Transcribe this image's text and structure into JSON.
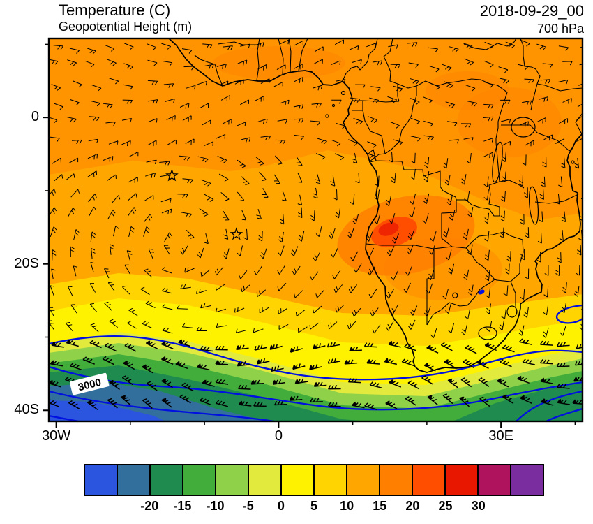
{
  "header": {
    "title_line1": "Temperature (C)",
    "title_line2": "Geopotential Height (m)",
    "datetime": "2018-09-29_00",
    "level": "700 hPa"
  },
  "axes": {
    "lon_min": -31,
    "lon_max": 41,
    "lat_min": -41.5,
    "lat_max": 10.8,
    "x_major_ticks": [
      {
        "lon": -30,
        "label": "30W"
      },
      {
        "lon": 0,
        "label": "0"
      },
      {
        "lon": 30,
        "label": "30E"
      }
    ],
    "x_minor_ticks": [
      -20,
      -10,
      10,
      20,
      40
    ],
    "y_major_ticks": [
      {
        "lat": 0,
        "label": "0"
      },
      {
        "lat": -20,
        "label": "20S"
      },
      {
        "lat": -40,
        "label": "40S"
      }
    ],
    "y_minor_ticks": [
      10,
      -10,
      -30
    ]
  },
  "map_overlays": {
    "height_contour_label": {
      "text": "3000",
      "lon": -25.5,
      "lat": -36.5,
      "rotation_deg": -14
    },
    "contour_color": "#0010e0",
    "coast_color": "#000000",
    "barb_color": "#000000",
    "station_markers": [
      {
        "type": "star",
        "name": "ascension-island",
        "lon": -14.4,
        "lat": -7.95
      },
      {
        "type": "star",
        "name": "st-helena",
        "lon": -5.7,
        "lat": -15.95
      },
      {
        "type": "circle",
        "name": "station-circle",
        "lon": 23.8,
        "lat": -24.3
      }
    ]
  },
  "colorbar": {
    "cells": [
      "#2B54DF",
      "#336F9D",
      "#1F8B4E",
      "#42AD3A",
      "#8FD24A",
      "#E2EA3E",
      "#FFF200",
      "#FFD400",
      "#FFA600",
      "#FF7F00",
      "#FF4E00",
      "#E81800",
      "#B0135E",
      "#7A2D9E"
    ],
    "labels": [
      "-20",
      "-15",
      "-10",
      "-5",
      "0",
      "5",
      "10",
      "15",
      "20",
      "25",
      "30"
    ],
    "first_labeled_boundary": 2
  },
  "chart_data": {
    "type": "heatmap",
    "title": "Temperature (C)",
    "overlay_title": "Geopotential Height (m)",
    "valid_time": "2018-09-29_00",
    "pressure_level": "700 hPa",
    "x_axis": {
      "label": "longitude",
      "tick_labels": [
        "30W",
        "0",
        "30E"
      ],
      "range_deg": [
        -31,
        41
      ]
    },
    "y_axis": {
      "label": "latitude",
      "tick_labels": [
        "0",
        "20S",
        "40S"
      ],
      "range_deg": [
        -41.5,
        10.8
      ]
    },
    "colorbar_tick_values_c": [
      -20,
      -15,
      -10,
      -5,
      0,
      5,
      10,
      15,
      20,
      25,
      30
    ],
    "palette": [
      "#2B54DF",
      "#336F9D",
      "#1F8B4E",
      "#42AD3A",
      "#8FD24A",
      "#E2EA3E",
      "#FFF200",
      "#FFD400",
      "#FFA600",
      "#FF7F00",
      "#FF4E00",
      "#E81800",
      "#B0135E",
      "#7A2D9E"
    ],
    "field_summary": [
      {
        "region": "tropics and subtropics (10N to ~25S), ocean and land",
        "temperature_c": "10-15"
      },
      {
        "region": "Sahel, Congo basin and East Africa patches",
        "temperature_c": "15-20"
      },
      {
        "region": "warm core over Angola / Zambia (~14-18E, 13-17S)",
        "temperature_c": "20-25"
      },
      {
        "region": "zonal band ~27S-33S",
        "temperature_c": "5-10"
      },
      {
        "region": "zonal band ~33S-37S",
        "temperature_c": "-5-5"
      },
      {
        "region": "southwest corner near 40S",
        "temperature_c": "-15 to -5"
      }
    ],
    "geopotential_contours_m": [
      3000
    ],
    "height_pattern": "blue geopotential height contours cross the southern third of the domain; 3000 m contour labeled in the southwest; small closed low near 38E 29S",
    "wind": "black wind barbs over whole domain: easterlies in the tropics, anticyclonic gyre near St Helena, strong westerlies with pennants south of 30S",
    "markers": [
      {
        "symbol": "star",
        "lon": -14.4,
        "lat": -7.95
      },
      {
        "symbol": "star",
        "lon": -5.7,
        "lat": -15.95
      }
    ]
  }
}
